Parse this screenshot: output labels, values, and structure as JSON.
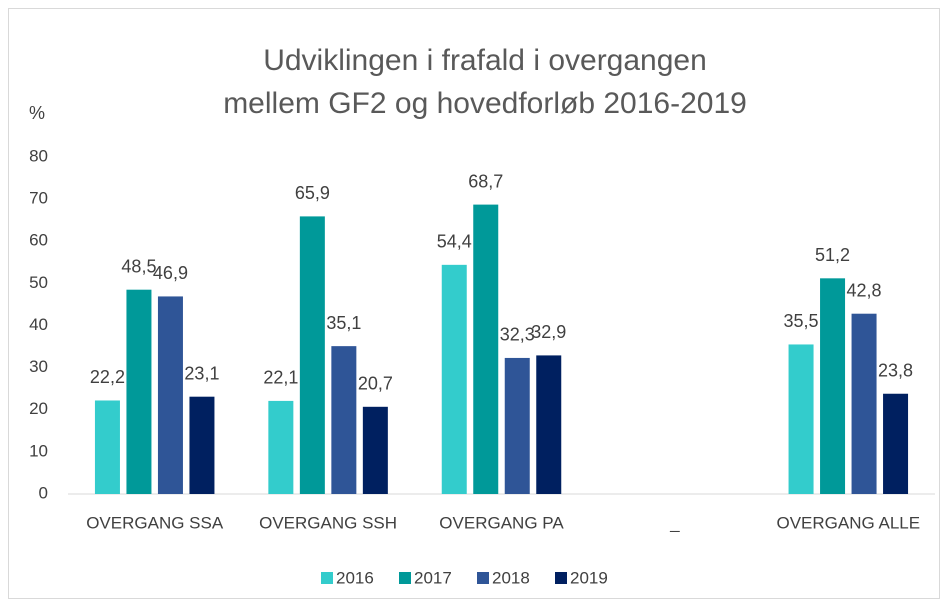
{
  "chart_data": {
    "type": "bar",
    "title": [
      "Udviklingen i frafald i overgangen",
      "mellem GF2 og hovedforløb 2016-2019"
    ],
    "y_label": "%",
    "categories": [
      "OVERGANG SSA",
      "OVERGANG SSH",
      "OVERGANG PA",
      "_",
      "OVERGANG ALLE"
    ],
    "series": [
      {
        "name": "2016",
        "color": "#33cccc",
        "values": [
          22.2,
          22.1,
          54.4,
          null,
          35.5
        ],
        "value_labels": [
          "22,2",
          "22,1",
          "54,4",
          null,
          "35,5"
        ]
      },
      {
        "name": "2017",
        "color": "#009999",
        "values": [
          48.5,
          65.9,
          68.7,
          null,
          51.2
        ],
        "value_labels": [
          "48,5",
          "65,9",
          "68,7",
          null,
          "51,2"
        ]
      },
      {
        "name": "2018",
        "color": "#2f5597",
        "values": [
          46.9,
          35.1,
          32.3,
          null,
          42.8
        ],
        "value_labels": [
          "46,9",
          "35,1",
          "32,3",
          null,
          "42,8"
        ]
      },
      {
        "name": "2019",
        "color": "#002060",
        "values": [
          23.1,
          20.7,
          32.9,
          null,
          23.8
        ],
        "value_labels": [
          "23,1",
          "20,7",
          "32,9",
          null,
          "23,8"
        ]
      }
    ],
    "ylim": [
      0,
      80
    ],
    "yticks": [
      0,
      10,
      20,
      30,
      40,
      50,
      60,
      70,
      80
    ],
    "grid": false,
    "legend": "bottom"
  }
}
